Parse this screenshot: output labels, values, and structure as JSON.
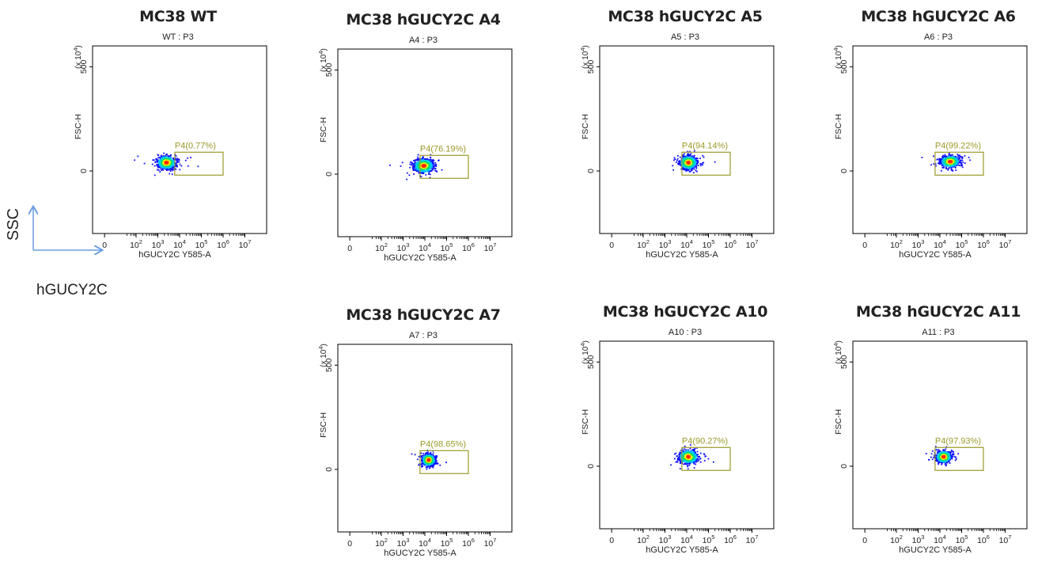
{
  "colors": {
    "gate": "#9b9a2a",
    "legend_arrow": "#6a9ee0",
    "density": [
      "#1010ff",
      "#00c8ff",
      "#00e070",
      "#ffee00",
      "#ff2a00"
    ]
  },
  "axis_legend": {
    "y": "SSC",
    "x": "hGUCY2C"
  },
  "chart_data": [
    {
      "type": "scatter",
      "title": "MC38  WT",
      "subtitle": "WT : P3",
      "xlabel": "hGUCY2C Y585-A",
      "ylabel": "FSC-H",
      "y_multiplier": "(x 10^4)",
      "xscale": "log",
      "xticks": [
        "0",
        "10^2",
        "10^3",
        "10^4",
        "10^5",
        "10^6",
        "10^7"
      ],
      "yticks": [
        0,
        500
      ],
      "gate": {
        "name": "P4",
        "label": "P4(0.77%)",
        "percent": 0.77,
        "x_range": [
          6000,
          1000000
        ],
        "y_range": [
          -20,
          90
        ]
      },
      "population": {
        "x_center": 2500,
        "x_log_spread": 0.55,
        "y_center": 40,
        "y_spread": 16
      }
    },
    {
      "type": "scatter",
      "title": "MC38 hGUCY2C A4",
      "subtitle": "A4 : P3",
      "xlabel": "hGUCY2C Y585-A",
      "ylabel": "FSC-H",
      "y_multiplier": "(x 10^4)",
      "xscale": "log",
      "xticks": [
        "0",
        "10^2",
        "10^3",
        "10^4",
        "10^5",
        "10^6",
        "10^7"
      ],
      "yticks": [
        0,
        500
      ],
      "gate": {
        "name": "P4",
        "label": "P4(76.19%)",
        "percent": 76.19,
        "x_range": [
          6000,
          1000000
        ],
        "y_range": [
          -20,
          90
        ]
      },
      "population": {
        "x_center": 9000,
        "x_log_spread": 0.6,
        "y_center": 40,
        "y_spread": 16
      }
    },
    {
      "type": "scatter",
      "title": "MC38 hGUCY2C A5",
      "subtitle": "A5 : P3",
      "xlabel": "hGUCY2C Y585-A",
      "ylabel": "FSC-H",
      "y_multiplier": "(x 10^4)",
      "xscale": "log",
      "xticks": [
        "0",
        "10^2",
        "10^3",
        "10^4",
        "10^5",
        "10^6",
        "10^7"
      ],
      "yticks": [
        0,
        500
      ],
      "gate": {
        "name": "P4",
        "label": "P4(94.14%)",
        "percent": 94.14,
        "x_range": [
          6000,
          1000000
        ],
        "y_range": [
          -20,
          90
        ]
      },
      "population": {
        "x_center": 12000,
        "x_log_spread": 0.5,
        "y_center": 40,
        "y_spread": 16
      }
    },
    {
      "type": "scatter",
      "title": "MC38 hGUCY2C A6",
      "subtitle": "A6 : P3",
      "xlabel": "hGUCY2C Y585-A",
      "ylabel": "FSC-H",
      "y_multiplier": "(x 10^4)",
      "xscale": "log",
      "xticks": [
        "0",
        "10^2",
        "10^3",
        "10^4",
        "10^5",
        "10^6",
        "10^7"
      ],
      "yticks": [
        0,
        500
      ],
      "gate": {
        "name": "P4",
        "label": "P4(99.22%)",
        "percent": 99.22,
        "x_range": [
          6000,
          1000000
        ],
        "y_range": [
          -20,
          90
        ]
      },
      "population": {
        "x_center": 30000,
        "x_log_spread": 0.55,
        "y_center": 45,
        "y_spread": 14
      }
    },
    {
      "type": "scatter",
      "title": "MC38 hGUCY2C A7",
      "subtitle": "A7 : P3",
      "xlabel": "hGUCY2C Y585-A",
      "ylabel": "FSC-H",
      "y_multiplier": "(x 10^4)",
      "xscale": "log",
      "xticks": [
        "0",
        "10^2",
        "10^3",
        "10^4",
        "10^5",
        "10^6",
        "10^7"
      ],
      "yticks": [
        0,
        500
      ],
      "gate": {
        "name": "P4",
        "label": "P4(98.65%)",
        "percent": 98.65,
        "x_range": [
          6000,
          1000000
        ],
        "y_range": [
          -20,
          90
        ]
      },
      "population": {
        "x_center": 15000,
        "x_log_spread": 0.4,
        "y_center": 45,
        "y_spread": 14
      }
    },
    {
      "type": "scatter",
      "title": "MC38 hGUCY2C A10",
      "subtitle": "A10 : P3",
      "xlabel": "hGUCY2C Y585-A",
      "ylabel": "FSC-H",
      "y_multiplier": "(x 10^4)",
      "xscale": "log",
      "xticks": [
        "0",
        "10^2",
        "10^3",
        "10^4",
        "10^5",
        "10^6",
        "10^7"
      ],
      "yticks": [
        0,
        500
      ],
      "gate": {
        "name": "P4",
        "label": "P4(90.27%)",
        "percent": 90.27,
        "x_range": [
          6000,
          1000000
        ],
        "y_range": [
          -20,
          90
        ]
      },
      "population": {
        "x_center": 12000,
        "x_log_spread": 0.55,
        "y_center": 45,
        "y_spread": 16
      }
    },
    {
      "type": "scatter",
      "title": "MC38 hGUCY2C A11",
      "subtitle": "A11 : P3",
      "xlabel": "hGUCY2C Y585-A",
      "ylabel": "FSC-H",
      "y_multiplier": "(x 10^4)",
      "xscale": "log",
      "xticks": [
        "0",
        "10^2",
        "10^3",
        "10^4",
        "10^5",
        "10^6",
        "10^7"
      ],
      "yticks": [
        0,
        500
      ],
      "gate": {
        "name": "P4",
        "label": "P4(97.93%)",
        "percent": 97.93,
        "x_range": [
          6000,
          1000000
        ],
        "y_range": [
          -20,
          90
        ]
      },
      "population": {
        "x_center": 15000,
        "x_log_spread": 0.45,
        "y_center": 45,
        "y_spread": 14
      }
    }
  ]
}
